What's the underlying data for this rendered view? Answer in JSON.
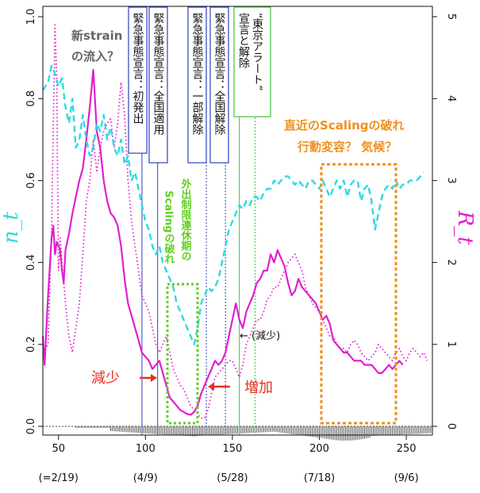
{
  "chart_data": {
    "type": "line",
    "x_range": [
      41,
      265
    ],
    "y_left_range": [
      0,
      1.0
    ],
    "y_right_range": [
      0,
      5
    ],
    "left_axis_label": "n_t",
    "right_axis_label": "R_t",
    "x_ticks": [
      50,
      100,
      150,
      200,
      250
    ],
    "x_date_labels": [
      {
        "x": 50,
        "label": "(=2/19)"
      },
      {
        "x": 100,
        "label": "(4/9)"
      },
      {
        "x": 150,
        "label": "(5/28)"
      },
      {
        "x": 200,
        "label": "(7/18)"
      },
      {
        "x": 250,
        "label": "(9/6)"
      }
    ],
    "y_left_ticks": [
      "0.0",
      "0.2",
      "0.4",
      "0.6",
      "0.8",
      "1.0"
    ],
    "y_right_ticks": [
      "0",
      "1",
      "2",
      "3",
      "4",
      "5"
    ],
    "grid": false,
    "series": [
      {
        "color": "#e020d0",
        "style": "solid",
        "axis": "left",
        "x": [
          41,
          42,
          44,
          46,
          47,
          48,
          49,
          50,
          51,
          52,
          53,
          54,
          56,
          58,
          60,
          62,
          64,
          66,
          68,
          70,
          72,
          74,
          76,
          78,
          80,
          82,
          84,
          86,
          88,
          90,
          92,
          94,
          96,
          98,
          100,
          102,
          104,
          106,
          108,
          110,
          112,
          114,
          116,
          118,
          120,
          122,
          124,
          126,
          128,
          130,
          132,
          134,
          136,
          138,
          140,
          142,
          144,
          146,
          148,
          150,
          152,
          154,
          156,
          158,
          160,
          162,
          164,
          166,
          168,
          170,
          172,
          174,
          176,
          178,
          180,
          182,
          184,
          186,
          188,
          190,
          192,
          194,
          196,
          198,
          200,
          202,
          204,
          206,
          208,
          210,
          212,
          214,
          216,
          218,
          220,
          222,
          224,
          226,
          228,
          230,
          232,
          234,
          236,
          238,
          240,
          242,
          244,
          246,
          248
        ],
        "y": [
          0.22,
          0.15,
          0.32,
          0.46,
          0.49,
          0.42,
          0.45,
          0.44,
          0.43,
          0.38,
          0.35,
          0.43,
          0.47,
          0.52,
          0.56,
          0.6,
          0.63,
          0.7,
          0.78,
          0.87,
          0.72,
          0.68,
          0.6,
          0.55,
          0.52,
          0.51,
          0.49,
          0.44,
          0.36,
          0.3,
          0.27,
          0.24,
          0.21,
          0.18,
          0.17,
          0.16,
          0.14,
          0.15,
          0.16,
          0.13,
          0.1,
          0.07,
          0.06,
          0.05,
          0.04,
          0.035,
          0.03,
          0.028,
          0.035,
          0.05,
          0.08,
          0.1,
          0.12,
          0.14,
          0.16,
          0.15,
          0.16,
          0.18,
          0.22,
          0.26,
          0.3,
          0.26,
          0.24,
          0.28,
          0.3,
          0.32,
          0.35,
          0.36,
          0.38,
          0.38,
          0.42,
          0.4,
          0.43,
          0.41,
          0.39,
          0.35,
          0.32,
          0.33,
          0.36,
          0.34,
          0.33,
          0.32,
          0.31,
          0.3,
          0.28,
          0.26,
          0.27,
          0.25,
          0.21,
          0.2,
          0.19,
          0.18,
          0.18,
          0.17,
          0.16,
          0.16,
          0.16,
          0.15,
          0.15,
          0.15,
          0.14,
          0.13,
          0.13,
          0.14,
          0.15,
          0.14,
          0.15,
          0.16,
          0.15
        ]
      },
      {
        "color": "#e020d0",
        "style": "dotted",
        "axis": "left",
        "x": [
          41,
          44,
          46,
          48,
          49,
          50,
          51,
          52,
          54,
          56,
          58,
          60,
          62,
          64,
          66,
          68,
          70,
          72,
          74,
          76,
          78,
          80,
          82,
          84,
          86,
          88,
          90,
          92,
          94,
          96,
          98,
          100,
          102,
          104,
          106,
          108,
          110,
          112,
          114,
          116,
          118,
          120,
          122,
          124,
          126,
          128,
          130,
          132,
          134,
          136,
          138,
          140,
          142,
          144,
          146,
          148,
          150,
          152,
          154,
          156,
          158,
          160,
          162,
          164,
          166,
          168,
          170,
          172,
          174,
          176,
          178,
          180,
          182,
          184,
          186,
          188,
          190,
          192,
          194,
          196,
          198,
          200,
          202,
          204,
          206,
          208,
          210,
          212,
          214,
          216,
          218,
          220,
          222,
          224,
          226,
          228,
          230,
          232,
          234,
          236,
          238,
          240,
          242,
          244,
          246,
          248,
          250,
          252,
          254,
          256,
          258,
          260,
          262
        ],
        "y": [
          0.18,
          0.2,
          0.48,
          0.98,
          0.85,
          0.38,
          0.46,
          0.4,
          0.3,
          0.22,
          0.18,
          0.24,
          0.3,
          0.42,
          0.55,
          0.6,
          0.7,
          0.62,
          0.68,
          0.72,
          0.74,
          0.75,
          0.68,
          0.74,
          0.84,
          0.76,
          0.6,
          0.5,
          0.44,
          0.38,
          0.32,
          0.3,
          0.28,
          0.24,
          0.2,
          0.18,
          0.2,
          0.22,
          0.18,
          0.14,
          0.12,
          0.1,
          0.09,
          0.07,
          0.05,
          0.04,
          0.03,
          0.02,
          0.02,
          0.04,
          0.08,
          0.12,
          0.13,
          0.14,
          0.15,
          0.16,
          0.16,
          0.14,
          0.12,
          0.15,
          0.2,
          0.22,
          0.24,
          0.26,
          0.26,
          0.28,
          0.31,
          0.32,
          0.34,
          0.34,
          0.36,
          0.38,
          0.4,
          0.41,
          0.42,
          0.4,
          0.38,
          0.34,
          0.32,
          0.3,
          0.29,
          0.28,
          0.26,
          0.24,
          0.22,
          0.22,
          0.2,
          0.19,
          0.19,
          0.18,
          0.2,
          0.21,
          0.2,
          0.18,
          0.17,
          0.16,
          0.17,
          0.18,
          0.2,
          0.19,
          0.18,
          0.17,
          0.16,
          0.18,
          0.19,
          0.17,
          0.16,
          0.18,
          0.19,
          0.18,
          0.17,
          0.18,
          0.16
        ]
      },
      {
        "color": "#30d8e0",
        "style": "dashed",
        "axis": "left",
        "x": [
          41,
          44,
          46,
          48,
          50,
          52,
          54,
          56,
          58,
          60,
          62,
          64,
          66,
          68,
          70,
          72,
          74,
          76,
          78,
          80,
          82,
          84,
          86,
          88,
          90,
          92,
          94,
          96,
          98,
          100,
          102,
          104,
          106,
          108,
          110,
          112,
          114,
          116,
          118,
          120,
          122,
          124,
          126,
          128,
          130,
          132,
          134,
          136,
          138,
          140,
          142,
          144,
          146,
          148,
          150,
          152,
          154,
          156,
          158,
          160,
          162,
          164,
          166,
          168,
          170,
          172,
          174,
          176,
          178,
          180,
          182,
          184,
          186,
          188,
          190,
          192,
          194,
          196,
          198,
          200,
          202,
          204,
          206,
          208,
          210,
          212,
          214,
          216,
          218,
          220,
          222,
          224,
          226,
          228,
          230,
          232,
          234,
          236,
          238,
          240,
          242,
          244,
          246,
          248,
          250,
          252,
          254,
          256,
          258,
          260
        ],
        "y": [
          0.82,
          0.84,
          0.88,
          0.86,
          0.83,
          0.85,
          0.78,
          0.74,
          0.8,
          0.68,
          0.7,
          0.76,
          0.7,
          0.66,
          0.68,
          0.74,
          0.72,
          0.76,
          0.7,
          0.73,
          0.68,
          0.66,
          0.7,
          0.64,
          0.66,
          0.6,
          0.62,
          0.58,
          0.54,
          0.5,
          0.48,
          0.44,
          0.42,
          0.44,
          0.4,
          0.38,
          0.36,
          0.34,
          0.3,
          0.28,
          0.26,
          0.24,
          0.22,
          0.2,
          0.24,
          0.3,
          0.32,
          0.34,
          0.33,
          0.34,
          0.36,
          0.4,
          0.44,
          0.48,
          0.5,
          0.52,
          0.54,
          0.53,
          0.55,
          0.54,
          0.56,
          0.56,
          0.55,
          0.57,
          0.58,
          0.58,
          0.6,
          0.59,
          0.6,
          0.61,
          0.61,
          0.6,
          0.59,
          0.6,
          0.59,
          0.58,
          0.6,
          0.6,
          0.59,
          0.58,
          0.6,
          0.58,
          0.56,
          0.58,
          0.6,
          0.58,
          0.6,
          0.56,
          0.59,
          0.6,
          0.6,
          0.55,
          0.58,
          0.59,
          0.55,
          0.48,
          0.52,
          0.56,
          0.58,
          0.59,
          0.58,
          0.6,
          0.58,
          0.59,
          0.59,
          0.6,
          0.6,
          0.6,
          0.61,
          0.62
        ]
      }
    ],
    "declaration_lines": [
      {
        "x": 98,
        "color": "#3040c0",
        "style": "solid"
      },
      {
        "x": 107,
        "color": "#3040c0",
        "style": "solid"
      },
      {
        "x": 135,
        "color": "#3040c0",
        "style": "dotted"
      },
      {
        "x": 146,
        "color": "#3040c0",
        "style": "dotted"
      },
      {
        "x": 154,
        "color": "#40c040",
        "style": "solid"
      },
      {
        "x": 163,
        "color": "#40c040",
        "style": "dotted"
      }
    ],
    "annotations": {
      "new_strain": [
        "新strain",
        "の流入？"
      ],
      "label_box_1": "緊急事態宣言：初発出",
      "label_box_2": "緊急事態宣言：全国適用",
      "label_box_3": "緊急事態宣言：一部解除",
      "label_box_4": "緊急事態宣言：全国解除",
      "label_box_5": [
        "“東京アラート”",
        "宣言と解除"
      ],
      "scaling_break_green": [
        "外出制限連休期の",
        "Scalingの破れ"
      ],
      "recent_break": [
        "直近のScalingの破れ",
        "行動変容？ 気候？"
      ],
      "decrease": "減少",
      "increase": "増加",
      "small_decrease": "← (減少)"
    },
    "colors": {
      "magenta": "#e020d0",
      "cyan": "#30d8e0",
      "orange": "#f0901e",
      "green": "#60d020",
      "red": "#e83020",
      "blue_box": "#3040c0",
      "green_box": "#40c040"
    }
  }
}
